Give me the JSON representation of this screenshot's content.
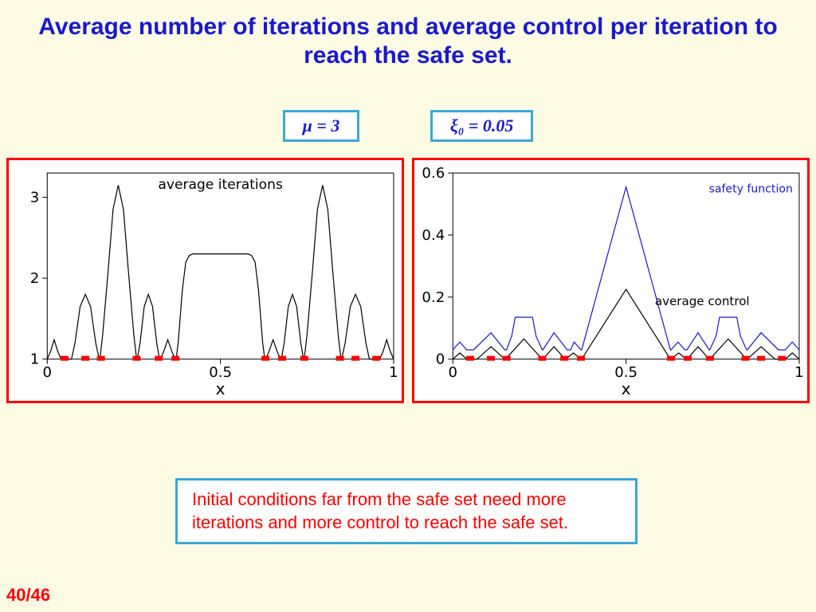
{
  "title": "Average number of iterations and average control per iteration to reach the safe set.",
  "params": {
    "mu": "μ = 3",
    "xi0": "ξ₀ = 0.05"
  },
  "caption": "Initial conditions far from the safe set need more iterations and more control to reach the safe set.",
  "pagenum": "40/46",
  "background_color": "#fdfbe4",
  "title_color": "#1919cc",
  "param_border_color": "#3ba7d6",
  "frame_border_color": "#ff0000",
  "caption_text_color": "#ff0000",
  "marker_color": "#ff0000",
  "blue_line_color": "#1919cc",
  "chart_left": {
    "type": "line",
    "inner_title": "average iterations",
    "xlabel": "x",
    "xlim": [
      0,
      1
    ],
    "ylim": [
      1,
      3.3
    ],
    "xticks": [
      0,
      0.5,
      1
    ],
    "yticks": [
      1,
      2,
      3
    ],
    "bg": "#ffffff",
    "line_color": "#000000",
    "data": [
      [
        0.0,
        1.0
      ],
      [
        0.01,
        1.1
      ],
      [
        0.02,
        1.24
      ],
      [
        0.03,
        1.1
      ],
      [
        0.04,
        1.0
      ],
      [
        0.07,
        1.0
      ],
      [
        0.08,
        1.2
      ],
      [
        0.095,
        1.65
      ],
      [
        0.11,
        1.8
      ],
      [
        0.125,
        1.65
      ],
      [
        0.14,
        1.2
      ],
      [
        0.15,
        1.0
      ],
      [
        0.152,
        1.0
      ],
      [
        0.16,
        1.3
      ],
      [
        0.175,
        2.05
      ],
      [
        0.19,
        2.85
      ],
      [
        0.205,
        3.15
      ],
      [
        0.22,
        2.85
      ],
      [
        0.235,
        2.05
      ],
      [
        0.25,
        1.3
      ],
      [
        0.258,
        1.0
      ],
      [
        0.26,
        1.0
      ],
      [
        0.268,
        1.2
      ],
      [
        0.28,
        1.65
      ],
      [
        0.292,
        1.8
      ],
      [
        0.304,
        1.65
      ],
      [
        0.316,
        1.2
      ],
      [
        0.324,
        1.0
      ],
      [
        0.326,
        1.0
      ],
      [
        0.335,
        1.08
      ],
      [
        0.348,
        1.24
      ],
      [
        0.361,
        1.08
      ],
      [
        0.37,
        1.0
      ],
      [
        0.372,
        1.0
      ],
      [
        0.378,
        1.2
      ],
      [
        0.39,
        1.85
      ],
      [
        0.4,
        2.2
      ],
      [
        0.41,
        2.28
      ],
      [
        0.42,
        2.3
      ],
      [
        0.5,
        2.3
      ],
      [
        0.58,
        2.3
      ],
      [
        0.59,
        2.28
      ],
      [
        0.6,
        2.2
      ],
      [
        0.61,
        1.85
      ],
      [
        0.622,
        1.2
      ],
      [
        0.628,
        1.0
      ],
      [
        0.63,
        1.0
      ],
      [
        0.639,
        1.08
      ],
      [
        0.652,
        1.24
      ],
      [
        0.665,
        1.08
      ],
      [
        0.674,
        1.0
      ],
      [
        0.676,
        1.0
      ],
      [
        0.684,
        1.2
      ],
      [
        0.696,
        1.65
      ],
      [
        0.708,
        1.8
      ],
      [
        0.72,
        1.65
      ],
      [
        0.732,
        1.2
      ],
      [
        0.74,
        1.0
      ],
      [
        0.742,
        1.0
      ],
      [
        0.75,
        1.3
      ],
      [
        0.765,
        2.05
      ],
      [
        0.78,
        2.85
      ],
      [
        0.795,
        3.15
      ],
      [
        0.81,
        2.85
      ],
      [
        0.825,
        2.05
      ],
      [
        0.84,
        1.3
      ],
      [
        0.848,
        1.0
      ],
      [
        0.85,
        1.0
      ],
      [
        0.86,
        1.2
      ],
      [
        0.875,
        1.65
      ],
      [
        0.89,
        1.8
      ],
      [
        0.905,
        1.65
      ],
      [
        0.92,
        1.2
      ],
      [
        0.93,
        1.0
      ],
      [
        0.96,
        1.0
      ],
      [
        0.97,
        1.1
      ],
      [
        0.98,
        1.24
      ],
      [
        0.99,
        1.1
      ],
      [
        1.0,
        1.0
      ]
    ],
    "red_markers_x": [
      0.05,
      0.11,
      0.155,
      0.258,
      0.322,
      0.37,
      0.63,
      0.678,
      0.742,
      0.845,
      0.89,
      0.95
    ]
  },
  "chart_right": {
    "type": "line",
    "inner_title": "average control",
    "legend_label": "safety function",
    "xlabel": "x",
    "xlim": [
      0,
      1
    ],
    "ylim": [
      0,
      0.6
    ],
    "xticks": [
      0,
      0.5,
      1
    ],
    "yticks": [
      0,
      0.2,
      0.4,
      0.6
    ],
    "bg": "#ffffff",
    "black_line_color": "#000000",
    "blue_line_color": "#1919cc",
    "black_data": [
      [
        0.0,
        0.0
      ],
      [
        0.02,
        0.02
      ],
      [
        0.04,
        0.0
      ],
      [
        0.07,
        0.0
      ],
      [
        0.11,
        0.04
      ],
      [
        0.15,
        0.0
      ],
      [
        0.152,
        0.0
      ],
      [
        0.205,
        0.065
      ],
      [
        0.258,
        0.0
      ],
      [
        0.26,
        0.0
      ],
      [
        0.292,
        0.04
      ],
      [
        0.324,
        0.0
      ],
      [
        0.326,
        0.0
      ],
      [
        0.348,
        0.02
      ],
      [
        0.37,
        0.0
      ],
      [
        0.372,
        0.0
      ],
      [
        0.5,
        0.225
      ],
      [
        0.628,
        0.0
      ],
      [
        0.63,
        0.0
      ],
      [
        0.652,
        0.02
      ],
      [
        0.674,
        0.0
      ],
      [
        0.676,
        0.0
      ],
      [
        0.708,
        0.04
      ],
      [
        0.74,
        0.0
      ],
      [
        0.742,
        0.0
      ],
      [
        0.795,
        0.065
      ],
      [
        0.848,
        0.0
      ],
      [
        0.85,
        0.0
      ],
      [
        0.89,
        0.04
      ],
      [
        0.93,
        0.0
      ],
      [
        0.96,
        0.0
      ],
      [
        0.98,
        0.02
      ],
      [
        1.0,
        0.0
      ]
    ],
    "blue_data": [
      [
        0.0,
        0.03
      ],
      [
        0.02,
        0.055
      ],
      [
        0.04,
        0.03
      ],
      [
        0.06,
        0.03
      ],
      [
        0.11,
        0.085
      ],
      [
        0.15,
        0.03
      ],
      [
        0.155,
        0.03
      ],
      [
        0.17,
        0.075
      ],
      [
        0.18,
        0.135
      ],
      [
        0.23,
        0.135
      ],
      [
        0.24,
        0.075
      ],
      [
        0.258,
        0.03
      ],
      [
        0.26,
        0.03
      ],
      [
        0.292,
        0.085
      ],
      [
        0.33,
        0.03
      ],
      [
        0.34,
        0.03
      ],
      [
        0.35,
        0.055
      ],
      [
        0.37,
        0.03
      ],
      [
        0.372,
        0.03
      ],
      [
        0.5,
        0.555
      ],
      [
        0.628,
        0.03
      ],
      [
        0.63,
        0.03
      ],
      [
        0.65,
        0.055
      ],
      [
        0.67,
        0.03
      ],
      [
        0.676,
        0.03
      ],
      [
        0.708,
        0.085
      ],
      [
        0.74,
        0.03
      ],
      [
        0.742,
        0.03
      ],
      [
        0.76,
        0.075
      ],
      [
        0.77,
        0.135
      ],
      [
        0.82,
        0.135
      ],
      [
        0.83,
        0.075
      ],
      [
        0.848,
        0.03
      ],
      [
        0.85,
        0.03
      ],
      [
        0.89,
        0.085
      ],
      [
        0.94,
        0.03
      ],
      [
        0.96,
        0.03
      ],
      [
        0.98,
        0.055
      ],
      [
        1.0,
        0.03
      ]
    ],
    "red_markers_x": [
      0.05,
      0.11,
      0.155,
      0.258,
      0.322,
      0.37,
      0.63,
      0.678,
      0.742,
      0.845,
      0.89,
      0.95
    ]
  }
}
